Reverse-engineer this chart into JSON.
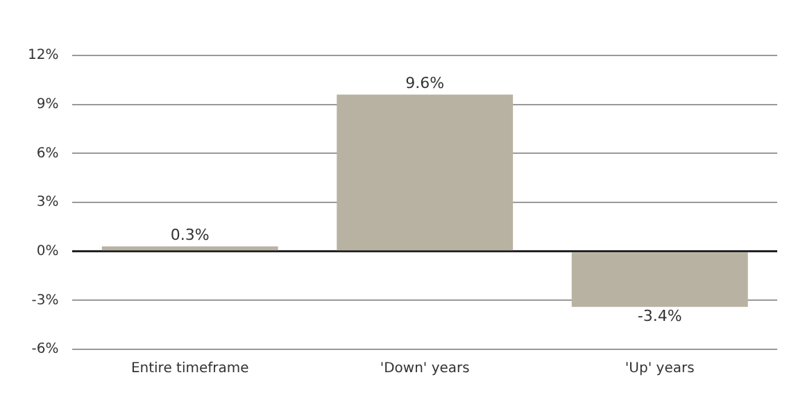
{
  "chart_data": {
    "type": "bar",
    "categories": [
      "Entire timeframe",
      "'Down' years",
      "'Up' years"
    ],
    "values": [
      0.3,
      9.6,
      -3.4
    ],
    "value_labels": [
      "0.3%",
      "9.6%",
      "-3.4%"
    ],
    "color": "#b8b2a2",
    "ylim": [
      -6,
      12
    ],
    "yticks": [
      {
        "value": -6,
        "label": "-6%"
      },
      {
        "value": -3,
        "label": "-3%"
      },
      {
        "value": 0,
        "label": "0%"
      },
      {
        "value": 3,
        "label": "3%"
      },
      {
        "value": 6,
        "label": "6%"
      },
      {
        "value": 9,
        "label": "9%"
      },
      {
        "value": 12,
        "label": "12%"
      }
    ],
    "grid": "y",
    "legend": false
  }
}
